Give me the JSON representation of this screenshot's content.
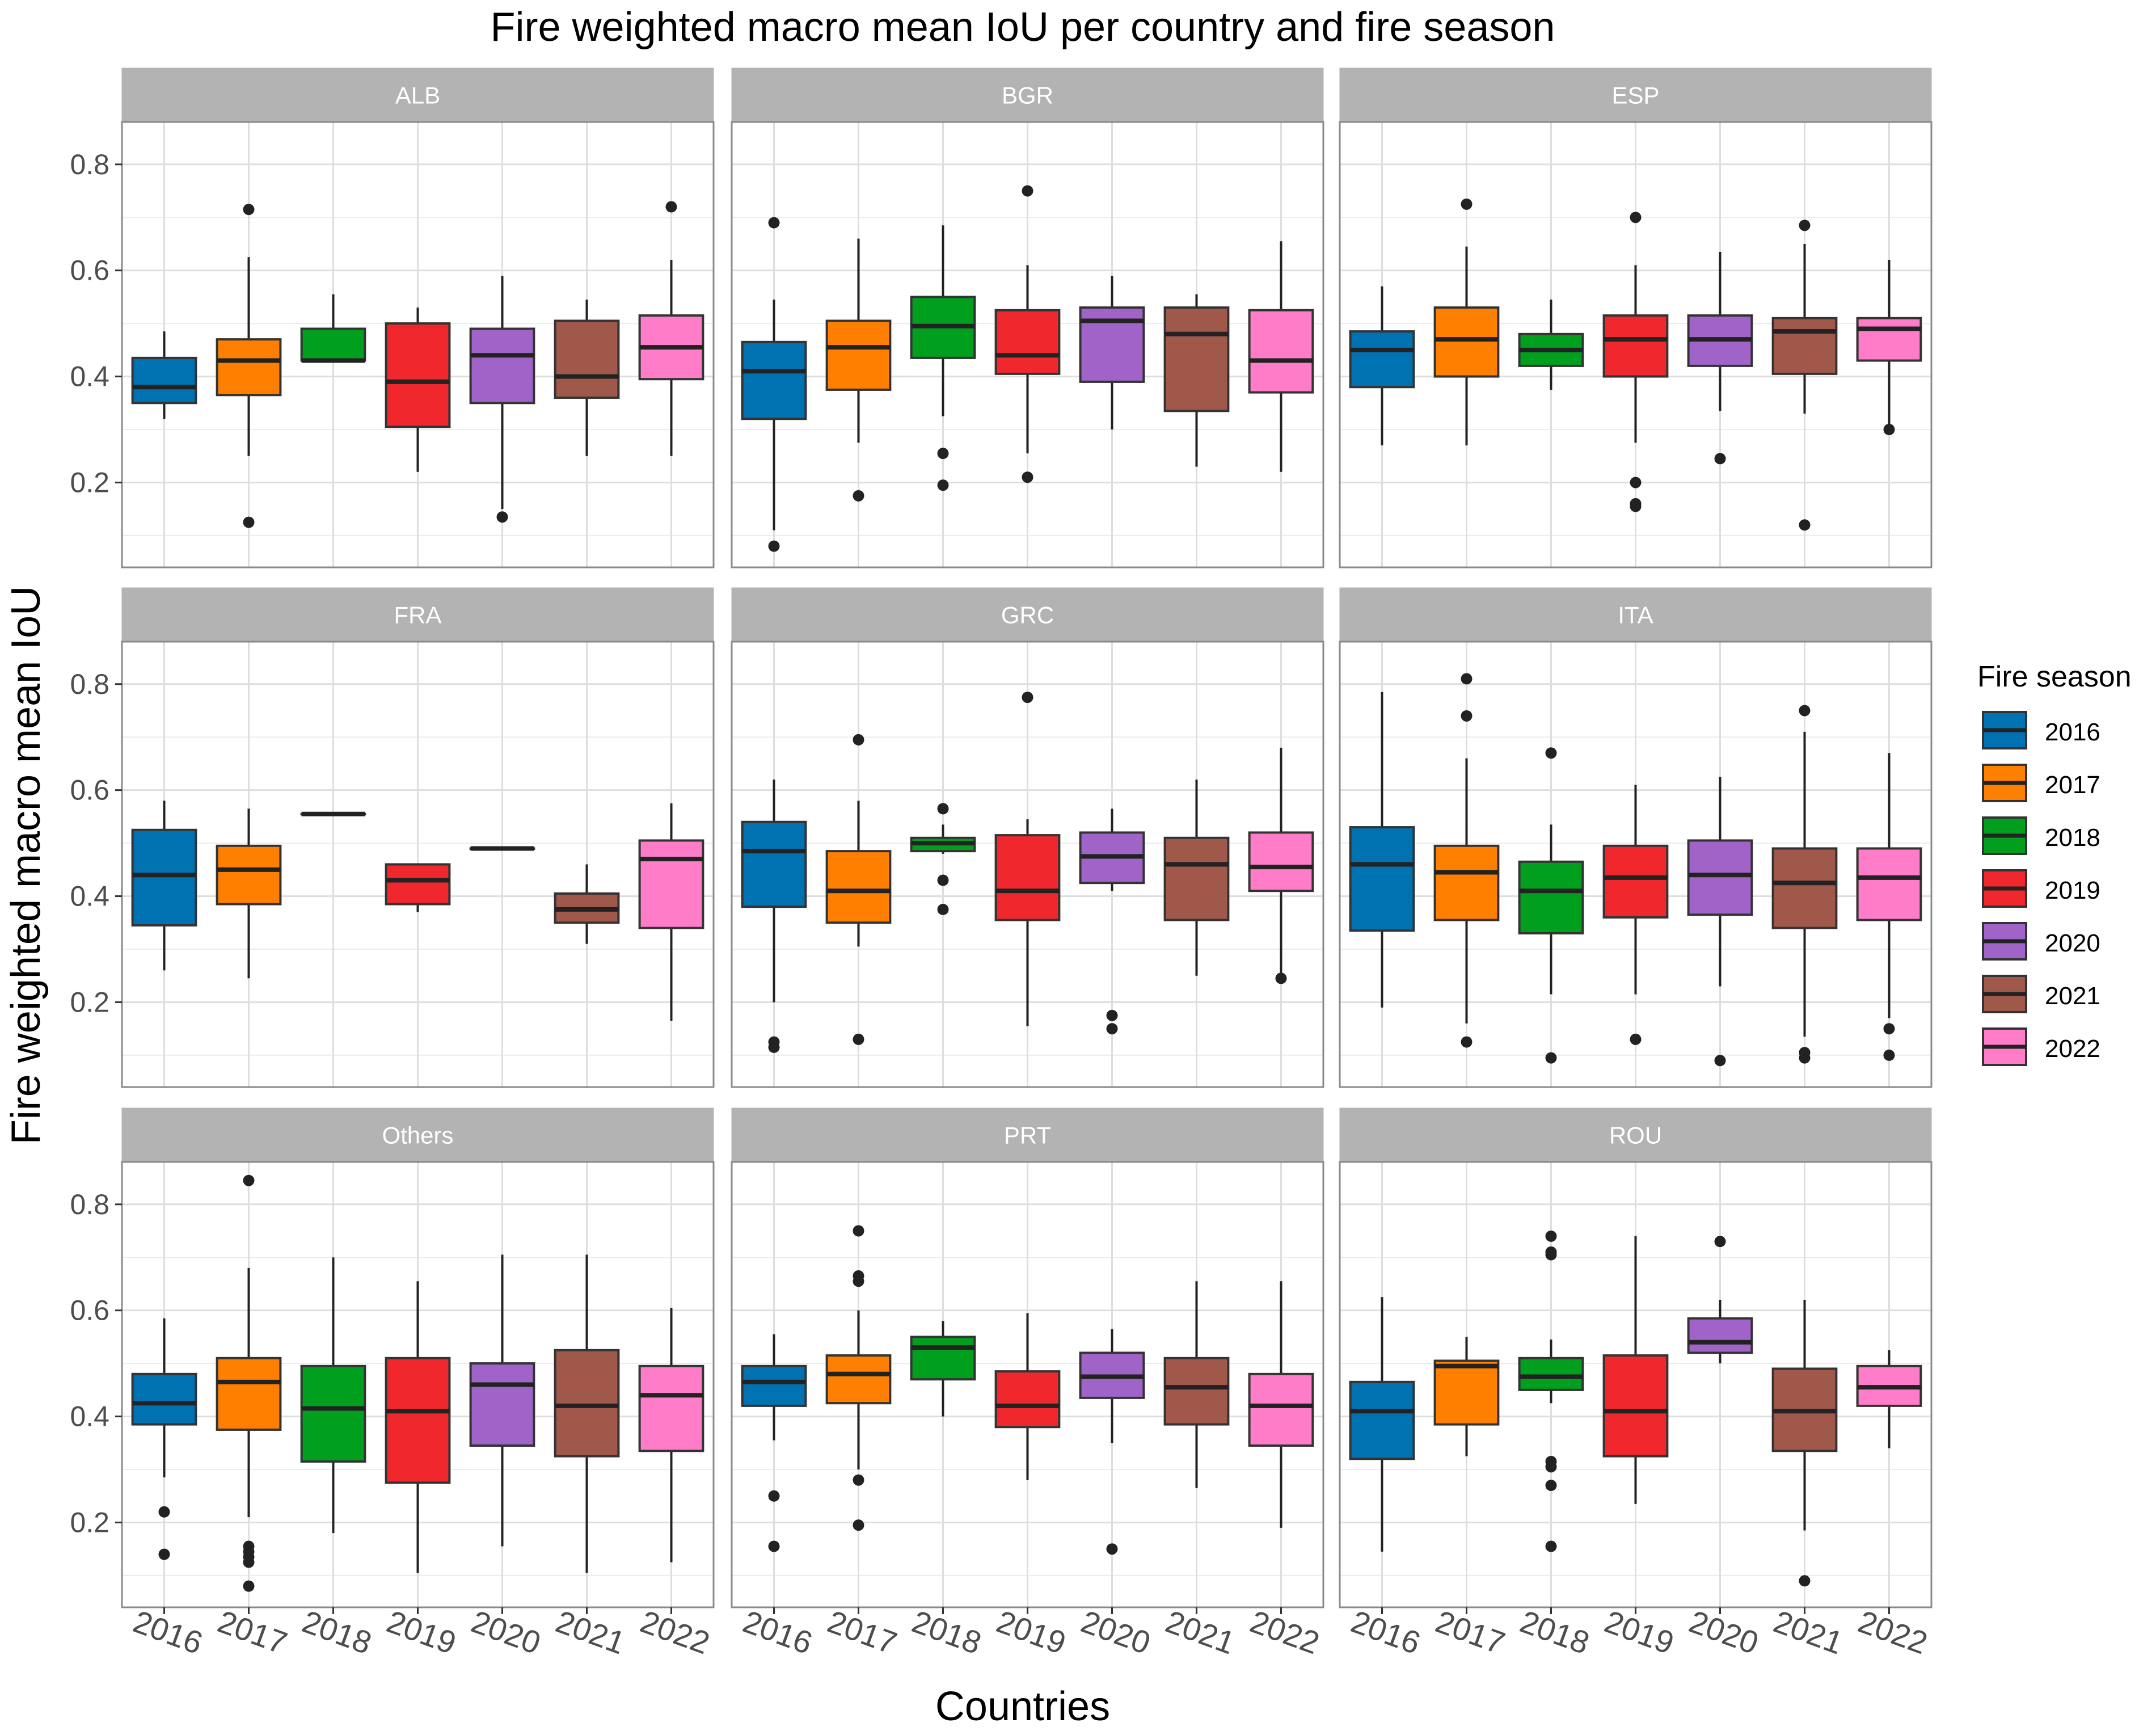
{
  "chart_data": {
    "type": "boxplot",
    "title": "Fire weighted macro mean IoU per country and fire season",
    "xlabel": "Countries",
    "ylabel": "Fire weighted macro mean IoU",
    "ylim": [
      0.04,
      0.88
    ],
    "yticks": [
      0.2,
      0.4,
      0.6,
      0.8
    ],
    "ytick_labels": [
      "0.2",
      "0.4",
      "0.6",
      "0.8"
    ],
    "categories": [
      "2016",
      "2017",
      "2018",
      "2019",
      "2020",
      "2021",
      "2022"
    ],
    "legend": {
      "title": "Fire season",
      "placement": "right",
      "entries": [
        {
          "label": "2016",
          "color": "#0072B2"
        },
        {
          "label": "2017",
          "color": "#FF7F00"
        },
        {
          "label": "2018",
          "color": "#00A01E"
        },
        {
          "label": "2019",
          "color": "#F0282D"
        },
        {
          "label": "2020",
          "color": "#A064C8"
        },
        {
          "label": "2021",
          "color": "#A0584A"
        },
        {
          "label": "2022",
          "color": "#FF7DC8"
        }
      ]
    },
    "panels": [
      {
        "name": "ALB",
        "boxes": [
          {
            "season": "2016",
            "lo": 0.32,
            "q1": 0.35,
            "med": 0.38,
            "q3": 0.435,
            "hi": 0.485,
            "outliers": []
          },
          {
            "season": "2017",
            "lo": 0.25,
            "q1": 0.365,
            "med": 0.43,
            "q3": 0.47,
            "hi": 0.625,
            "outliers": [
              0.715,
              0.125
            ]
          },
          {
            "season": "2018",
            "lo": 0.43,
            "q1": 0.43,
            "med": 0.43,
            "q3": 0.49,
            "hi": 0.555,
            "outliers": []
          },
          {
            "season": "2019",
            "lo": 0.22,
            "q1": 0.305,
            "med": 0.39,
            "q3": 0.5,
            "hi": 0.53,
            "outliers": []
          },
          {
            "season": "2020",
            "lo": 0.15,
            "q1": 0.35,
            "med": 0.44,
            "q3": 0.49,
            "hi": 0.59,
            "outliers": [
              0.135
            ]
          },
          {
            "season": "2021",
            "lo": 0.25,
            "q1": 0.36,
            "med": 0.4,
            "q3": 0.505,
            "hi": 0.545,
            "outliers": []
          },
          {
            "season": "2022",
            "lo": 0.25,
            "q1": 0.395,
            "med": 0.455,
            "q3": 0.515,
            "hi": 0.62,
            "outliers": [
              0.72
            ]
          }
        ]
      },
      {
        "name": "BGR",
        "boxes": [
          {
            "season": "2016",
            "lo": 0.11,
            "q1": 0.32,
            "med": 0.41,
            "q3": 0.465,
            "hi": 0.545,
            "outliers": [
              0.69,
              0.08
            ]
          },
          {
            "season": "2017",
            "lo": 0.275,
            "q1": 0.375,
            "med": 0.455,
            "q3": 0.505,
            "hi": 0.66,
            "outliers": [
              0.175
            ]
          },
          {
            "season": "2018",
            "lo": 0.325,
            "q1": 0.435,
            "med": 0.495,
            "q3": 0.55,
            "hi": 0.685,
            "outliers": [
              0.255,
              0.195
            ]
          },
          {
            "season": "2019",
            "lo": 0.255,
            "q1": 0.405,
            "med": 0.44,
            "q3": 0.525,
            "hi": 0.61,
            "outliers": [
              0.75,
              0.21
            ]
          },
          {
            "season": "2020",
            "lo": 0.3,
            "q1": 0.39,
            "med": 0.505,
            "q3": 0.53,
            "hi": 0.59,
            "outliers": []
          },
          {
            "season": "2021",
            "lo": 0.23,
            "q1": 0.335,
            "med": 0.48,
            "q3": 0.53,
            "hi": 0.555,
            "outliers": []
          },
          {
            "season": "2022",
            "lo": 0.22,
            "q1": 0.37,
            "med": 0.43,
            "q3": 0.525,
            "hi": 0.655,
            "outliers": []
          }
        ]
      },
      {
        "name": "ESP",
        "boxes": [
          {
            "season": "2016",
            "lo": 0.27,
            "q1": 0.38,
            "med": 0.45,
            "q3": 0.485,
            "hi": 0.57,
            "outliers": []
          },
          {
            "season": "2017",
            "lo": 0.27,
            "q1": 0.4,
            "med": 0.47,
            "q3": 0.53,
            "hi": 0.645,
            "outliers": [
              0.725
            ]
          },
          {
            "season": "2018",
            "lo": 0.375,
            "q1": 0.42,
            "med": 0.45,
            "q3": 0.48,
            "hi": 0.545,
            "outliers": []
          },
          {
            "season": "2019",
            "lo": 0.275,
            "q1": 0.4,
            "med": 0.47,
            "q3": 0.515,
            "hi": 0.61,
            "outliers": [
              0.7,
              0.2,
              0.16,
              0.155
            ]
          },
          {
            "season": "2020",
            "lo": 0.335,
            "q1": 0.42,
            "med": 0.47,
            "q3": 0.515,
            "hi": 0.635,
            "outliers": [
              0.245
            ]
          },
          {
            "season": "2021",
            "lo": 0.33,
            "q1": 0.405,
            "med": 0.485,
            "q3": 0.51,
            "hi": 0.65,
            "outliers": [
              0.685,
              0.12
            ]
          },
          {
            "season": "2022",
            "lo": 0.305,
            "q1": 0.43,
            "med": 0.49,
            "q3": 0.51,
            "hi": 0.62,
            "outliers": [
              0.3
            ]
          }
        ]
      },
      {
        "name": "FRA",
        "boxes": [
          {
            "season": "2016",
            "lo": 0.26,
            "q1": 0.345,
            "med": 0.44,
            "q3": 0.525,
            "hi": 0.58,
            "outliers": []
          },
          {
            "season": "2017",
            "lo": 0.245,
            "q1": 0.385,
            "med": 0.45,
            "q3": 0.495,
            "hi": 0.565,
            "outliers": []
          },
          {
            "season": "2018",
            "lo": 0.555,
            "q1": 0.555,
            "med": 0.555,
            "q3": 0.555,
            "hi": 0.555,
            "outliers": []
          },
          {
            "season": "2019",
            "lo": 0.37,
            "q1": 0.385,
            "med": 0.43,
            "q3": 0.46,
            "hi": 0.46,
            "outliers": []
          },
          {
            "season": "2020",
            "lo": 0.49,
            "q1": 0.49,
            "med": 0.49,
            "q3": 0.49,
            "hi": 0.49,
            "outliers": []
          },
          {
            "season": "2021",
            "lo": 0.31,
            "q1": 0.35,
            "med": 0.375,
            "q3": 0.405,
            "hi": 0.46,
            "outliers": []
          },
          {
            "season": "2022",
            "lo": 0.165,
            "q1": 0.34,
            "med": 0.47,
            "q3": 0.505,
            "hi": 0.575,
            "outliers": []
          }
        ]
      },
      {
        "name": "GRC",
        "boxes": [
          {
            "season": "2016",
            "lo": 0.2,
            "q1": 0.38,
            "med": 0.485,
            "q3": 0.54,
            "hi": 0.62,
            "outliers": [
              0.125,
              0.115
            ]
          },
          {
            "season": "2017",
            "lo": 0.305,
            "q1": 0.35,
            "med": 0.41,
            "q3": 0.485,
            "hi": 0.58,
            "outliers": [
              0.695,
              0.13
            ]
          },
          {
            "season": "2018",
            "lo": 0.48,
            "q1": 0.485,
            "med": 0.5,
            "q3": 0.51,
            "hi": 0.535,
            "outliers": [
              0.565,
              0.43,
              0.375
            ]
          },
          {
            "season": "2019",
            "lo": 0.155,
            "q1": 0.355,
            "med": 0.41,
            "q3": 0.515,
            "hi": 0.545,
            "outliers": [
              0.775
            ]
          },
          {
            "season": "2020",
            "lo": 0.41,
            "q1": 0.425,
            "med": 0.475,
            "q3": 0.52,
            "hi": 0.565,
            "outliers": [
              0.175,
              0.15
            ]
          },
          {
            "season": "2021",
            "lo": 0.25,
            "q1": 0.355,
            "med": 0.46,
            "q3": 0.51,
            "hi": 0.62,
            "outliers": []
          },
          {
            "season": "2022",
            "lo": 0.25,
            "q1": 0.41,
            "med": 0.455,
            "q3": 0.52,
            "hi": 0.68,
            "outliers": [
              0.245
            ]
          }
        ]
      },
      {
        "name": "ITA",
        "boxes": [
          {
            "season": "2016",
            "lo": 0.19,
            "q1": 0.335,
            "med": 0.46,
            "q3": 0.53,
            "hi": 0.785,
            "outliers": []
          },
          {
            "season": "2017",
            "lo": 0.16,
            "q1": 0.355,
            "med": 0.445,
            "q3": 0.495,
            "hi": 0.66,
            "outliers": [
              0.81,
              0.74,
              0.125
            ]
          },
          {
            "season": "2018",
            "lo": 0.215,
            "q1": 0.33,
            "med": 0.41,
            "q3": 0.465,
            "hi": 0.535,
            "outliers": [
              0.67,
              0.095
            ]
          },
          {
            "season": "2019",
            "lo": 0.215,
            "q1": 0.36,
            "med": 0.435,
            "q3": 0.495,
            "hi": 0.61,
            "outliers": [
              0.13
            ]
          },
          {
            "season": "2020",
            "lo": 0.23,
            "q1": 0.365,
            "med": 0.44,
            "q3": 0.505,
            "hi": 0.625,
            "outliers": [
              0.09
            ]
          },
          {
            "season": "2021",
            "lo": 0.135,
            "q1": 0.34,
            "med": 0.425,
            "q3": 0.49,
            "hi": 0.71,
            "outliers": [
              0.75,
              0.105,
              0.095
            ]
          },
          {
            "season": "2022",
            "lo": 0.17,
            "q1": 0.355,
            "med": 0.435,
            "q3": 0.49,
            "hi": 0.67,
            "outliers": [
              0.15,
              0.1
            ]
          }
        ]
      },
      {
        "name": "Others",
        "boxes": [
          {
            "season": "2016",
            "lo": 0.285,
            "q1": 0.385,
            "med": 0.425,
            "q3": 0.48,
            "hi": 0.585,
            "outliers": [
              0.22,
              0.14
            ]
          },
          {
            "season": "2017",
            "lo": 0.21,
            "q1": 0.375,
            "med": 0.465,
            "q3": 0.51,
            "hi": 0.68,
            "outliers": [
              0.845,
              0.155,
              0.145,
              0.135,
              0.125,
              0.08
            ]
          },
          {
            "season": "2018",
            "lo": 0.18,
            "q1": 0.315,
            "med": 0.415,
            "q3": 0.495,
            "hi": 0.7,
            "outliers": []
          },
          {
            "season": "2019",
            "lo": 0.105,
            "q1": 0.275,
            "med": 0.41,
            "q3": 0.51,
            "hi": 0.655,
            "outliers": []
          },
          {
            "season": "2020",
            "lo": 0.155,
            "q1": 0.345,
            "med": 0.46,
            "q3": 0.5,
            "hi": 0.705,
            "outliers": []
          },
          {
            "season": "2021",
            "lo": 0.105,
            "q1": 0.325,
            "med": 0.42,
            "q3": 0.525,
            "hi": 0.705,
            "outliers": []
          },
          {
            "season": "2022",
            "lo": 0.125,
            "q1": 0.335,
            "med": 0.44,
            "q3": 0.495,
            "hi": 0.605,
            "outliers": []
          }
        ]
      },
      {
        "name": "PRT",
        "boxes": [
          {
            "season": "2016",
            "lo": 0.355,
            "q1": 0.42,
            "med": 0.465,
            "q3": 0.495,
            "hi": 0.555,
            "outliers": [
              0.25,
              0.155
            ]
          },
          {
            "season": "2017",
            "lo": 0.3,
            "q1": 0.425,
            "med": 0.48,
            "q3": 0.515,
            "hi": 0.6,
            "outliers": [
              0.75,
              0.665,
              0.655,
              0.28,
              0.195
            ]
          },
          {
            "season": "2018",
            "lo": 0.4,
            "q1": 0.47,
            "med": 0.53,
            "q3": 0.55,
            "hi": 0.58,
            "outliers": []
          },
          {
            "season": "2019",
            "lo": 0.28,
            "q1": 0.38,
            "med": 0.42,
            "q3": 0.485,
            "hi": 0.595,
            "outliers": []
          },
          {
            "season": "2020",
            "lo": 0.35,
            "q1": 0.435,
            "med": 0.475,
            "q3": 0.52,
            "hi": 0.565,
            "outliers": [
              0.15
            ]
          },
          {
            "season": "2021",
            "lo": 0.265,
            "q1": 0.385,
            "med": 0.455,
            "q3": 0.51,
            "hi": 0.655,
            "outliers": []
          },
          {
            "season": "2022",
            "lo": 0.19,
            "q1": 0.345,
            "med": 0.42,
            "q3": 0.48,
            "hi": 0.655,
            "outliers": []
          }
        ]
      },
      {
        "name": "ROU",
        "boxes": [
          {
            "season": "2016",
            "lo": 0.145,
            "q1": 0.32,
            "med": 0.41,
            "q3": 0.465,
            "hi": 0.625,
            "outliers": []
          },
          {
            "season": "2017",
            "lo": 0.325,
            "q1": 0.385,
            "med": 0.495,
            "q3": 0.505,
            "hi": 0.55,
            "outliers": []
          },
          {
            "season": "2018",
            "lo": 0.425,
            "q1": 0.45,
            "med": 0.475,
            "q3": 0.51,
            "hi": 0.545,
            "outliers": [
              0.74,
              0.71,
              0.705,
              0.315,
              0.305,
              0.27,
              0.155
            ]
          },
          {
            "season": "2019",
            "lo": 0.235,
            "q1": 0.325,
            "med": 0.41,
            "q3": 0.515,
            "hi": 0.74,
            "outliers": []
          },
          {
            "season": "2020",
            "lo": 0.5,
            "q1": 0.52,
            "med": 0.54,
            "q3": 0.585,
            "hi": 0.62,
            "outliers": [
              0.73
            ]
          },
          {
            "season": "2021",
            "lo": 0.185,
            "q1": 0.335,
            "med": 0.41,
            "q3": 0.49,
            "hi": 0.62,
            "outliers": [
              0.09
            ]
          },
          {
            "season": "2022",
            "lo": 0.34,
            "q1": 0.42,
            "med": 0.455,
            "q3": 0.495,
            "hi": 0.525,
            "outliers": []
          }
        ]
      }
    ]
  }
}
